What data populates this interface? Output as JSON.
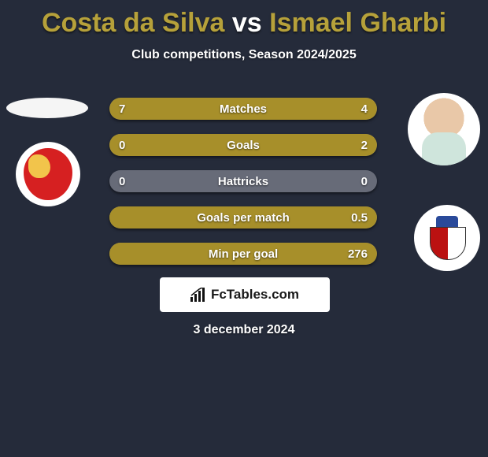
{
  "title": {
    "player1": "Costa da Silva",
    "vs": "vs",
    "player2": "Ismael Gharbi",
    "player1_color": "#b6a13a",
    "player2_color": "#b6a13a",
    "vs_color": "#ffffff",
    "fontsize": 34
  },
  "subtitle": "Club competitions, Season 2024/2025",
  "stats": {
    "bar_bg": "#676b78",
    "fill_color": "#a78f2a",
    "rows": [
      {
        "label": "Matches",
        "left": "7",
        "right": "4",
        "left_pct": 64,
        "right_pct": 36
      },
      {
        "label": "Goals",
        "left": "0",
        "right": "2",
        "left_pct": 0,
        "right_pct": 100
      },
      {
        "label": "Hattricks",
        "left": "0",
        "right": "0",
        "left_pct": 0,
        "right_pct": 0
      },
      {
        "label": "Goals per match",
        "left": "",
        "right": "0.5",
        "left_pct": 0,
        "right_pct": 100
      },
      {
        "label": "Min per goal",
        "left": "",
        "right": "276",
        "left_pct": 0,
        "right_pct": 100
      }
    ]
  },
  "watermark": "FcTables.com",
  "date": "3 december 2024",
  "background_color": "#252b3a"
}
